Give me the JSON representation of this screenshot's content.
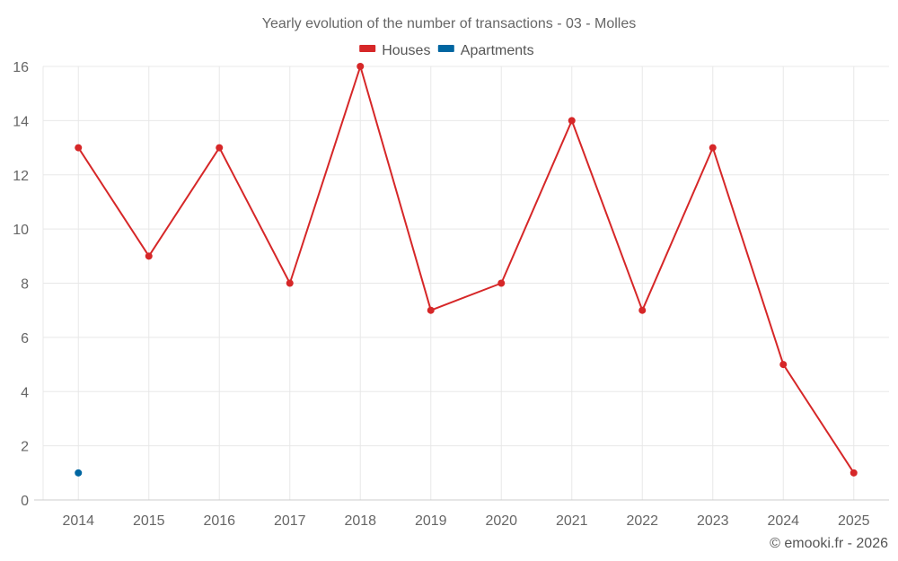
{
  "chart_data": {
    "type": "line",
    "title": "Yearly evolution of the number of transactions - 03 - Molles",
    "xlabel": "",
    "ylabel": "",
    "categories": [
      "2014",
      "2015",
      "2016",
      "2017",
      "2018",
      "2019",
      "2020",
      "2021",
      "2022",
      "2023",
      "2024",
      "2025"
    ],
    "ylim": [
      0,
      16
    ],
    "yticks": [
      0,
      2,
      4,
      6,
      8,
      10,
      12,
      14,
      16
    ],
    "grid": true,
    "legend_position": "top-center",
    "series": [
      {
        "name": "Houses",
        "color": "#d62728",
        "values": [
          13,
          9,
          13,
          8,
          16,
          7,
          8,
          14,
          7,
          13,
          5,
          1
        ]
      },
      {
        "name": "Apartments",
        "color": "#0066a1",
        "values": [
          1,
          null,
          null,
          null,
          null,
          null,
          null,
          null,
          null,
          null,
          null,
          null
        ]
      }
    ],
    "credit": "© emooki.fr - 2026"
  }
}
